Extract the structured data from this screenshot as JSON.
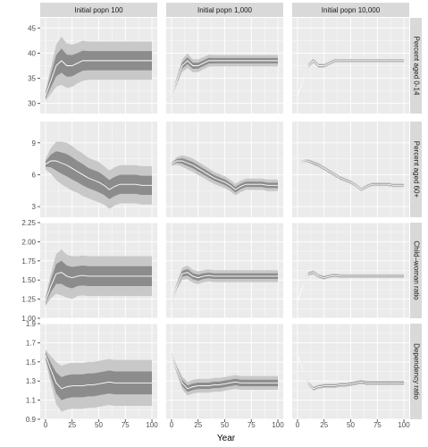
{
  "chart_data": {
    "type": "area",
    "xlabel": "Year",
    "x": [
      0,
      5,
      10,
      15,
      20,
      25,
      30,
      35,
      40,
      45,
      50,
      55,
      60,
      65,
      70,
      75,
      80,
      85,
      90,
      95,
      100
    ],
    "xlim": [
      0,
      100
    ],
    "x_ticks": [
      0,
      25,
      50,
      75,
      100
    ],
    "grid": true,
    "columns": [
      "Initial popn 100",
      "Initial popn 1,000",
      "Initial popn 10,000"
    ],
    "rows": [
      {
        "label": "Percent aged 0-14",
        "ylim": [
          28,
          47
        ],
        "ticks": [
          30,
          35,
          40,
          45
        ],
        "tick_labels": [
          "30",
          "35",
          "40",
          "45"
        ],
        "median": [
          31.5,
          34.5,
          37.5,
          38.5,
          37.5,
          37.5,
          38,
          38.5,
          38.5,
          38.5,
          38.5,
          38.5,
          38.5,
          38.5,
          38.5,
          38.5,
          38.5,
          38.5,
          38.5,
          38.5,
          38.5
        ],
        "base_halfwidth": [
          0.5,
          1.3,
          2.1,
          2.4,
          2.2,
          2.1,
          2.0,
          2.0,
          1.9,
          1.9,
          1.9,
          1.9,
          1.9,
          1.9,
          1.9,
          1.9,
          1.9,
          1.9,
          1.9,
          1.9,
          1.9
        ]
      },
      {
        "label": "Percent aged 60+",
        "ylim": [
          2,
          11
        ],
        "ticks": [
          3,
          6,
          9
        ],
        "tick_labels": [
          "3",
          "6",
          "9"
        ],
        "median": [
          7.0,
          7.3,
          7.3,
          7.1,
          6.9,
          6.6,
          6.3,
          6.0,
          5.7,
          5.5,
          5.3,
          5.0,
          4.6,
          4.9,
          5.1,
          5.1,
          5.1,
          5.1,
          5.0,
          5.0,
          5.0
        ],
        "base_halfwidth": [
          0.25,
          0.6,
          0.9,
          1.0,
          1.05,
          1.05,
          1.0,
          1.0,
          0.95,
          0.95,
          0.95,
          0.9,
          0.9,
          0.9,
          0.9,
          0.9,
          0.9,
          0.9,
          0.9,
          0.9,
          0.9
        ]
      },
      {
        "label": "Child–woman ratio",
        "ylim": [
          1.0,
          2.25
        ],
        "ticks": [
          1.0,
          1.25,
          1.5,
          1.75,
          2.0,
          2.25
        ],
        "tick_labels": [
          "1.00",
          "1.25",
          "1.50",
          "1.75",
          "2.00",
          "2.25"
        ],
        "median": [
          1.22,
          1.42,
          1.58,
          1.6,
          1.55,
          1.53,
          1.55,
          1.56,
          1.55,
          1.55,
          1.55,
          1.55,
          1.55,
          1.55,
          1.55,
          1.55,
          1.55,
          1.55,
          1.55,
          1.55,
          1.55
        ],
        "base_halfwidth": [
          0.03,
          0.08,
          0.13,
          0.15,
          0.14,
          0.14,
          0.13,
          0.13,
          0.13,
          0.13,
          0.13,
          0.13,
          0.13,
          0.13,
          0.13,
          0.13,
          0.13,
          0.13,
          0.13,
          0.13,
          0.13
        ]
      },
      {
        "label": "Dependency ratio",
        "ylim": [
          0.9,
          1.9
        ],
        "ticks": [
          0.9,
          1.1,
          1.3,
          1.5,
          1.7,
          1.9
        ],
        "tick_labels": [
          "0.9",
          "1.1",
          "1.3",
          "1.5",
          "1.7",
          "1.9"
        ],
        "median": [
          1.57,
          1.42,
          1.28,
          1.22,
          1.24,
          1.25,
          1.25,
          1.25,
          1.26,
          1.26,
          1.27,
          1.28,
          1.29,
          1.28,
          1.28,
          1.28,
          1.28,
          1.28,
          1.28,
          1.28,
          1.28
        ],
        "base_halfwidth": [
          0.03,
          0.07,
          0.11,
          0.12,
          0.12,
          0.12,
          0.12,
          0.12,
          0.12,
          0.12,
          0.12,
          0.12,
          0.12,
          0.12,
          0.12,
          0.12,
          0.12,
          0.12,
          0.12,
          0.12,
          0.12
        ]
      }
    ],
    "inner_band_multiplier": [
      1.0,
      0.28,
      0.09
    ],
    "outer_band_multiplier": [
      2.0,
      0.6,
      0.18
    ],
    "colors": {
      "panel_background": "#ebebeb",
      "grid": "#ffffff",
      "outer_band": "#c8c8c8",
      "inner_band": "#8c8c8c",
      "median_line": "#ffffff",
      "strip": "#d9d9d9"
    }
  }
}
